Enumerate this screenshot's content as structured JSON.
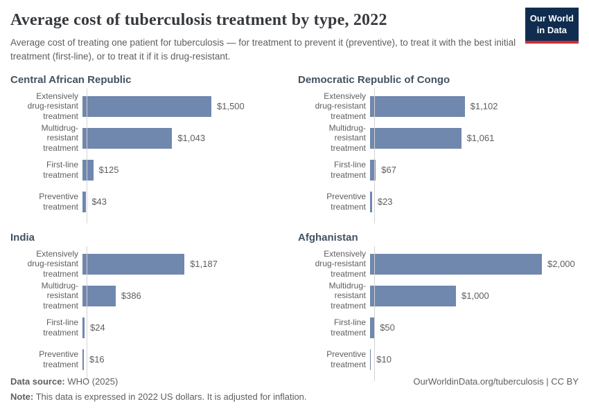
{
  "header": {
    "title": "Average cost of tuberculosis treatment by type, 2022",
    "subtitle": "Average cost of treating one patient for tuberculosis — for treatment to prevent it (preventive), to treat it with the best initial treatment (first-line), or to treat it if it is drug-resistant.",
    "logo": {
      "line1": "Our World",
      "line2": "in Data"
    }
  },
  "chart_data": {
    "type": "bar",
    "orientation": "horizontal",
    "title": "Average cost of tuberculosis treatment by type, 2022",
    "unit": "2022 US dollars",
    "xlim": [
      0,
      2000
    ],
    "grid": false,
    "value_labels_shown": true,
    "categories": [
      "Extensively drug-resistant treatment",
      "Multidrug-resistant treatment",
      "First-line treatment",
      "Preventive treatment"
    ],
    "category_display": [
      "Extensively\ndrug-resistant\ntreatment",
      "Multidrug-resistant\ntreatment",
      "First-line treatment",
      "Preventive\ntreatment"
    ],
    "panels": [
      {
        "title": "Central African Republic",
        "values": [
          1500,
          1043,
          125,
          43
        ],
        "value_labels": [
          "$1,500",
          "$1,043",
          "$125",
          "$43"
        ]
      },
      {
        "title": "Democratic Republic of Congo",
        "values": [
          1102,
          1061,
          67,
          23
        ],
        "value_labels": [
          "$1,102",
          "$1,061",
          "$67",
          "$23"
        ]
      },
      {
        "title": "India",
        "values": [
          1187,
          386,
          24,
          16
        ],
        "value_labels": [
          "$1,187",
          "$386",
          "$24",
          "$16"
        ]
      },
      {
        "title": "Afghanistan",
        "values": [
          2000,
          1000,
          50,
          10
        ],
        "value_labels": [
          "$2,000",
          "$1,000",
          "$50",
          "$10"
        ]
      }
    ],
    "bar_color": "#7087ae"
  },
  "footer": {
    "datasource_label": "Data source:",
    "datasource_value": " WHO (2025)",
    "note_label": "Note:",
    "note_value": " This data is expressed in 2022 US dollars. It is adjusted for inflation.",
    "attribution": "OurWorldinData.org/tuberculosis | CC BY"
  },
  "colors": {
    "bar": "#7087ae",
    "logo-background": "#102d50",
    "logo-underline": "#cd2d37",
    "panel-title": "#435260",
    "text-muted": "#5e5e5e",
    "title-text": "#36393d",
    "axis-line": "#d4d4d4"
  }
}
